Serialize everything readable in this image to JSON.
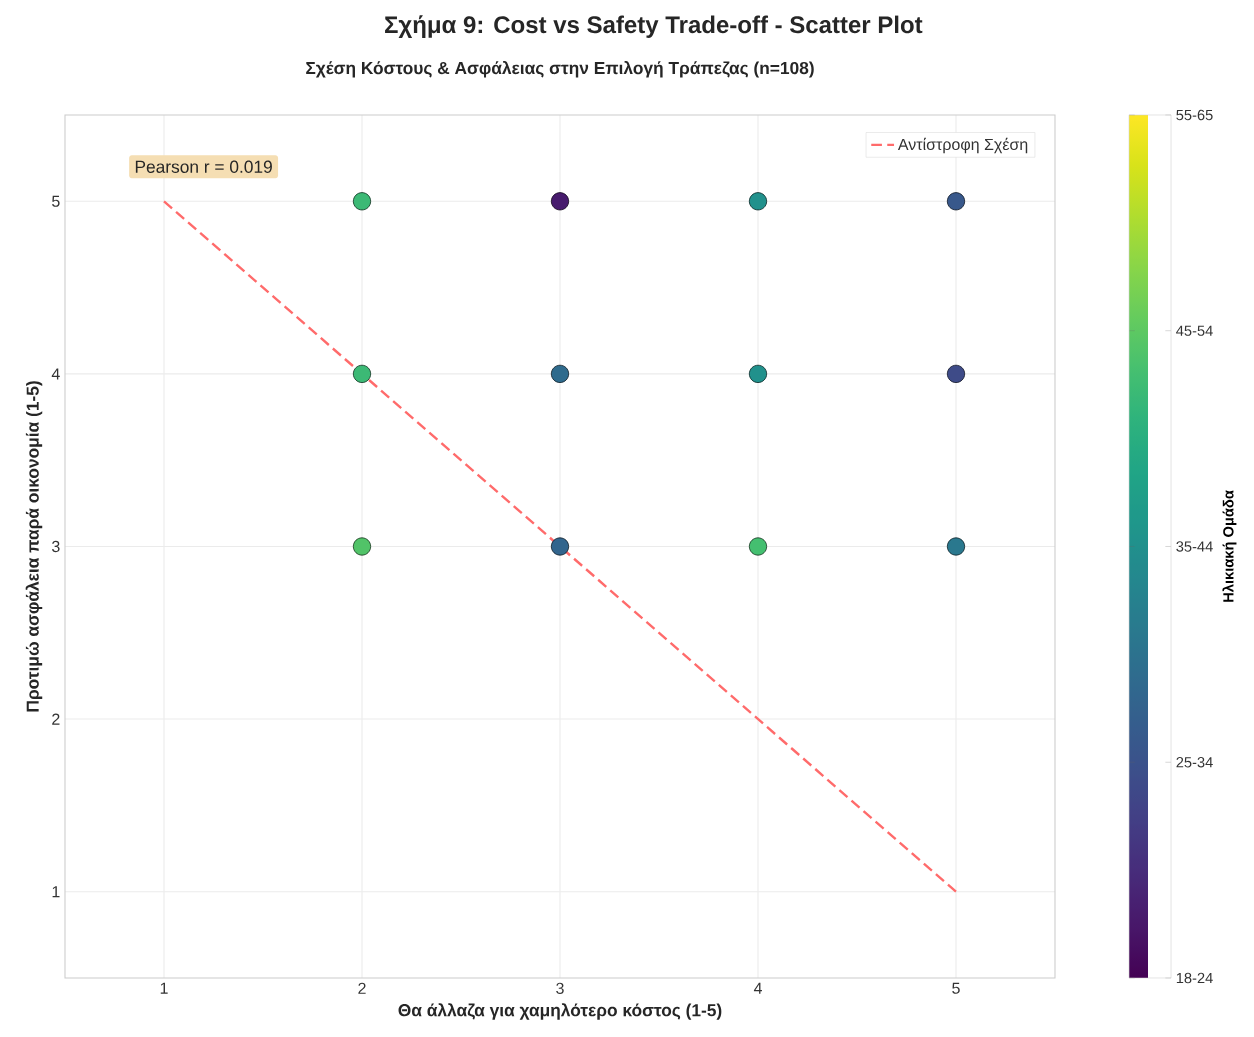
{
  "chart_data": {
    "type": "scatter",
    "title": "Σχήμα 9: Cost vs Safety Trade-off - Scatter Plot",
    "subtitle": "Σχέση Κόστους & Ασφάλειας στην Επιλογή Τράπεζας (n=108)",
    "xlabel": "Θα άλλαζα για χαμηλότερο κόστος (1-5)",
    "ylabel": "Προτιμώ ασφάλεια παρά οικονομία (1-5)",
    "clabel": "Ηλικιακή Ομάδα",
    "annotations": [
      "Pearson r = 0.019"
    ],
    "xlim": [
      0.5,
      5.5
    ],
    "ylim": [
      0.5,
      5.5
    ],
    "xticks": [
      1,
      2,
      3,
      4,
      5
    ],
    "yticks": [
      1,
      2,
      3,
      4,
      5
    ],
    "clim": [
      1,
      5
    ],
    "cticks": [
      {
        "value": 1,
        "label": "18-24"
      },
      {
        "value": 2,
        "label": "25-34"
      },
      {
        "value": 3,
        "label": "35-44"
      },
      {
        "value": 4,
        "label": "45-54"
      },
      {
        "value": 5,
        "label": "55-65"
      }
    ],
    "grid": true,
    "legend": "top right",
    "marker": "circle",
    "series": [
      {
        "type": "scatter",
        "colors": [
          "#3cb975",
          "#471b6d",
          "#21918c",
          "#38588b",
          "#3cb975",
          "#2f6b8d",
          "#21918c",
          "#3e4b88",
          "#51c368",
          "#32658d",
          "#44bf70",
          "#2a788e"
        ],
        "x": [
          2,
          3,
          4,
          5,
          2,
          3,
          4,
          5,
          2,
          3,
          4,
          5
        ],
        "values": [
          5,
          5,
          5,
          5,
          4,
          4,
          4,
          4,
          3,
          3,
          3,
          3
        ],
        "cvalues": [
          3.7,
          1.3,
          3.0,
          2.1,
          3.7,
          2.4,
          3.0,
          1.9,
          3.9,
          2.3,
          3.8,
          2.6
        ]
      },
      {
        "type": "line",
        "name": "Αντίστροφη Σχέση",
        "color": "#ff6b6b",
        "line_style": "dashed",
        "marker": "none",
        "x": [
          1,
          5
        ],
        "values": [
          5,
          1
        ]
      }
    ]
  }
}
